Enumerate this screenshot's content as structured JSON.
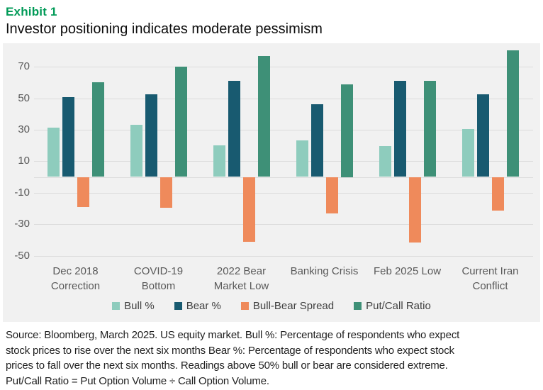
{
  "header": {
    "exhibit": "Exhibit 1",
    "title": "Investor positioning indicates moderate pessimism"
  },
  "chart_data": {
    "type": "bar",
    "title": "Investor positioning indicates moderate pessimism",
    "categories": [
      "Dec 2018 Correction",
      "COVID-19 Bottom",
      "2022 Bear Market Low",
      "Banking Crisis",
      "Feb 2025 Low",
      "Current Iran Conflict"
    ],
    "category_label_lines": [
      [
        "Dec 2018",
        "Correction"
      ],
      [
        "COVID-19",
        "Bottom"
      ],
      [
        "2022 Bear",
        "Market Low"
      ],
      [
        "Banking Crisis"
      ],
      [
        "Feb 2025 Low"
      ],
      [
        "Current Iran",
        "Conflict"
      ]
    ],
    "series": [
      {
        "name": "Bull %",
        "color": "#8ECCBD",
        "values": [
          31.5,
          33,
          20,
          23,
          19.5,
          30.5
        ]
      },
      {
        "name": "Bear %",
        "color": "#185A70",
        "values": [
          50.5,
          52.5,
          61,
          46,
          61,
          52.5
        ]
      },
      {
        "name": "Bull-Bear Spread",
        "color": "#EF8A5B",
        "values": [
          -19,
          -19.5,
          -41,
          -23,
          -41.5,
          -21.5
        ]
      },
      {
        "name": "Put/Call Ratio",
        "color": "#3E9077",
        "values": [
          60,
          70,
          77,
          59,
          61,
          80.5
        ]
      }
    ],
    "y_ticks": [
      70,
      50,
      30,
      10,
      -10,
      -30,
      -50
    ],
    "ylim": [
      -53,
      84
    ],
    "grid": true,
    "legend_position": "bottom",
    "xlabel": "",
    "ylabel": ""
  },
  "footer": {
    "lines": [
      "Source: Bloomberg, March 2025. US equity market. Bull %: Percentage of respondents who expect",
      "stock prices to rise over the next six months Bear %: Percentage of respondents who expect stock",
      "prices to fall over the next six months. Readings above 50% bull or bear are considered extreme.",
      "Put/Call Ratio = Put Option Volume ÷ Call Option Volume."
    ]
  },
  "colors": {
    "exhibit_green": "#009A57",
    "panel_bg": "#F1F1F1",
    "gridline": "#DCDCDC",
    "axis_text": "#595959",
    "legend_text": "#404040"
  }
}
